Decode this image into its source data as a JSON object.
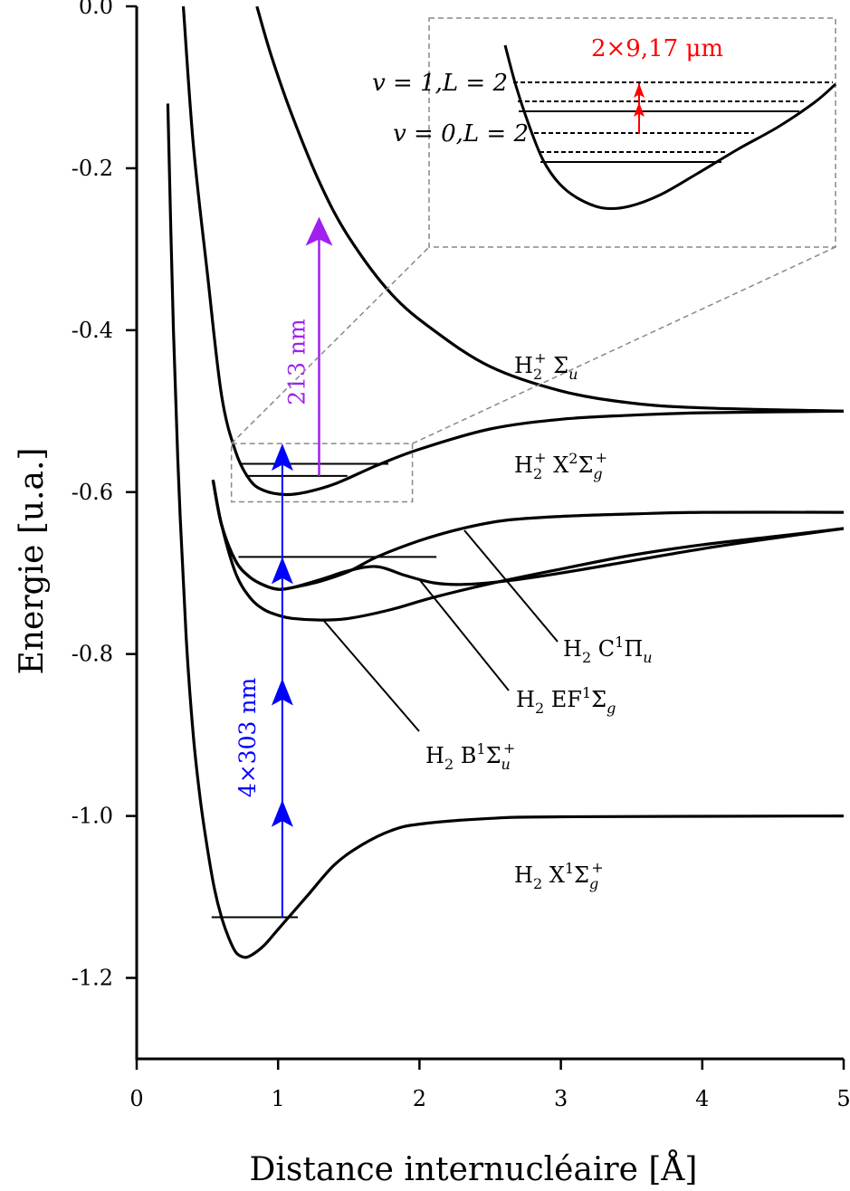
{
  "chart_data": {
    "type": "line",
    "title": "",
    "xlabel": "Distance internucléaire [Å]",
    "ylabel": "Energie [u.a.]",
    "xlim": [
      0,
      5
    ],
    "ylim": [
      -1.3,
      0.0
    ],
    "xticks": [
      {
        "v": 0,
        "label": "0"
      },
      {
        "v": 1,
        "label": "1"
      },
      {
        "v": 2,
        "label": "2"
      },
      {
        "v": 3,
        "label": "3"
      },
      {
        "v": 4,
        "label": "4"
      },
      {
        "v": 5,
        "label": "5"
      }
    ],
    "yticks": [
      {
        "v": 0.0,
        "label": "0.0"
      },
      {
        "v": -0.2,
        "label": "-0.2"
      },
      {
        "v": -0.4,
        "label": "-0.4"
      },
      {
        "v": -0.6,
        "label": "-0.6"
      },
      {
        "v": -0.8,
        "label": "-0.8"
      },
      {
        "v": -1.0,
        "label": "-1.0"
      },
      {
        "v": -1.2,
        "label": "-1.2"
      }
    ],
    "grid": false,
    "series": [
      {
        "id": "h2plus_sigma_u",
        "label_main": "H",
        "label_sub": "2",
        "label_sup": "+",
        "label_rest": " Σ",
        "label_tail": "u",
        "points": [
          [
            0.85,
            0.0
          ],
          [
            0.95,
            -0.06
          ],
          [
            1.1,
            -0.135
          ],
          [
            1.3,
            -0.22
          ],
          [
            1.5,
            -0.285
          ],
          [
            1.8,
            -0.355
          ],
          [
            2.1,
            -0.4
          ],
          [
            2.5,
            -0.445
          ],
          [
            3.0,
            -0.475
          ],
          [
            3.5,
            -0.49
          ],
          [
            4.0,
            -0.496
          ],
          [
            5.0,
            -0.5
          ]
        ]
      },
      {
        "id": "h2plus_x",
        "label_main": "H",
        "label_sub": "2",
        "label_sup": "+",
        "label_rest": " X",
        "label_sup2": "2",
        "label_mid": "Σ",
        "label_tail": "g",
        "label_tailsup": "+",
        "points": [
          [
            0.33,
            0.0
          ],
          [
            0.4,
            -0.17
          ],
          [
            0.5,
            -0.33
          ],
          [
            0.6,
            -0.48
          ],
          [
            0.7,
            -0.55
          ],
          [
            0.8,
            -0.585
          ],
          [
            0.9,
            -0.598
          ],
          [
            1.05,
            -0.603
          ],
          [
            1.2,
            -0.6
          ],
          [
            1.4,
            -0.59
          ],
          [
            1.7,
            -0.567
          ],
          [
            2.0,
            -0.547
          ],
          [
            2.5,
            -0.522
          ],
          [
            3.0,
            -0.51
          ],
          [
            3.5,
            -0.505
          ],
          [
            4.0,
            -0.502
          ],
          [
            5.0,
            -0.5
          ]
        ]
      },
      {
        "id": "h2_c",
        "label_main": "H",
        "label_sub": "2",
        "label_rest": " C",
        "label_sup2": "1",
        "label_mid": "Π",
        "label_tail": "u",
        "points": [
          [
            0.54,
            -0.585
          ],
          [
            0.6,
            -0.64
          ],
          [
            0.7,
            -0.685
          ],
          [
            0.8,
            -0.705
          ],
          [
            0.9,
            -0.715
          ],
          [
            1.0,
            -0.72
          ],
          [
            1.1,
            -0.718
          ],
          [
            1.3,
            -0.71
          ],
          [
            1.5,
            -0.698
          ],
          [
            1.7,
            -0.68
          ],
          [
            2.0,
            -0.66
          ],
          [
            2.3,
            -0.645
          ],
          [
            2.6,
            -0.635
          ],
          [
            3.0,
            -0.63
          ],
          [
            3.5,
            -0.627
          ],
          [
            4.0,
            -0.625
          ],
          [
            5.0,
            -0.625
          ]
        ]
      },
      {
        "id": "h2_ef",
        "label_main": "H",
        "label_sub": "2",
        "label_rest": " EF",
        "label_sup2": "1",
        "label_mid": "Σ",
        "label_tail": "g",
        "points": [
          [
            0.54,
            -0.585
          ],
          [
            0.6,
            -0.64
          ],
          [
            0.7,
            -0.685
          ],
          [
            0.8,
            -0.705
          ],
          [
            0.9,
            -0.715
          ],
          [
            1.0,
            -0.72
          ],
          [
            1.1,
            -0.718
          ],
          [
            1.3,
            -0.708
          ],
          [
            1.5,
            -0.697
          ],
          [
            1.7,
            -0.692
          ],
          [
            1.9,
            -0.703
          ],
          [
            2.1,
            -0.712
          ],
          [
            2.3,
            -0.714
          ],
          [
            2.6,
            -0.71
          ],
          [
            3.0,
            -0.7
          ],
          [
            3.5,
            -0.685
          ],
          [
            4.0,
            -0.67
          ],
          [
            4.5,
            -0.657
          ],
          [
            5.0,
            -0.645
          ]
        ]
      },
      {
        "id": "h2_b",
        "label_main": "H",
        "label_sub": "2",
        "label_rest": " B",
        "label_sup2": "1",
        "label_mid": "Σ",
        "label_tail": "u",
        "label_tailsup": "+",
        "points": [
          [
            0.54,
            -0.585
          ],
          [
            0.6,
            -0.64
          ],
          [
            0.7,
            -0.7
          ],
          [
            0.8,
            -0.73
          ],
          [
            0.9,
            -0.745
          ],
          [
            1.0,
            -0.752
          ],
          [
            1.1,
            -0.756
          ],
          [
            1.3,
            -0.758
          ],
          [
            1.5,
            -0.756
          ],
          [
            1.8,
            -0.745
          ],
          [
            2.1,
            -0.73
          ],
          [
            2.5,
            -0.713
          ],
          [
            3.0,
            -0.695
          ],
          [
            3.5,
            -0.678
          ],
          [
            4.0,
            -0.665
          ],
          [
            4.5,
            -0.655
          ],
          [
            5.0,
            -0.645
          ]
        ]
      },
      {
        "id": "h2_x",
        "label_main": "H",
        "label_sub": "2",
        "label_rest": " X",
        "label_sup2": "1",
        "label_mid": "Σ",
        "label_tail": "g",
        "label_tailsup": "+",
        "points": [
          [
            0.22,
            -0.12
          ],
          [
            0.26,
            -0.4
          ],
          [
            0.3,
            -0.6
          ],
          [
            0.35,
            -0.78
          ],
          [
            0.4,
            -0.9
          ],
          [
            0.45,
            -0.98
          ],
          [
            0.5,
            -1.04
          ],
          [
            0.55,
            -1.09
          ],
          [
            0.6,
            -1.125
          ],
          [
            0.65,
            -1.15
          ],
          [
            0.7,
            -1.168
          ],
          [
            0.75,
            -1.174
          ],
          [
            0.8,
            -1.173
          ],
          [
            0.9,
            -1.16
          ],
          [
            1.0,
            -1.14
          ],
          [
            1.2,
            -1.1
          ],
          [
            1.4,
            -1.06
          ],
          [
            1.6,
            -1.035
          ],
          [
            1.8,
            -1.018
          ],
          [
            2.0,
            -1.01
          ],
          [
            2.5,
            -1.003
          ],
          [
            3.0,
            -1.001
          ],
          [
            5.0,
            -1.0
          ]
        ]
      }
    ],
    "vibrational_levels": [
      {
        "x1": 0.53,
        "x2": 1.14,
        "y": -1.125
      },
      {
        "x1": 0.72,
        "x2": 2.12,
        "y": -0.68
      },
      {
        "x1": 0.73,
        "x2": 1.78,
        "y": -0.565
      },
      {
        "x1": 0.77,
        "x2": 1.49,
        "y": -0.58
      }
    ],
    "transitions": [
      {
        "id": "blue_multiphoton",
        "label": "4×303 nm",
        "color": "#0000ff",
        "x": 1.03,
        "y_from": -1.125,
        "y_to": -0.54,
        "arrowheads_at": [
          -0.98,
          -0.83,
          -0.68,
          -0.54
        ]
      },
      {
        "id": "purple_ionization",
        "label": "213 nm",
        "color": "#a020f0",
        "x": 1.29,
        "y_from": -0.58,
        "y_to": -0.26,
        "arrowheads_at": [
          -0.26
        ]
      }
    ],
    "inset": {
      "source_region": {
        "x1": 0.67,
        "x2": 1.95,
        "y1": -0.54,
        "y2": -0.612
      },
      "levels": [
        {
          "v_label": "v = 1,",
          "L_label": "L = 2",
          "style": "dashed"
        },
        {
          "style": "dashed"
        },
        {
          "style": "solid"
        },
        {
          "v_label": "v = 0,",
          "L_label": "L = 2",
          "style": "dashed"
        },
        {
          "style": "dashed"
        },
        {
          "style": "solid"
        }
      ],
      "annotation": "2×9,17 μm",
      "annotation_color": "#ff0000"
    }
  }
}
